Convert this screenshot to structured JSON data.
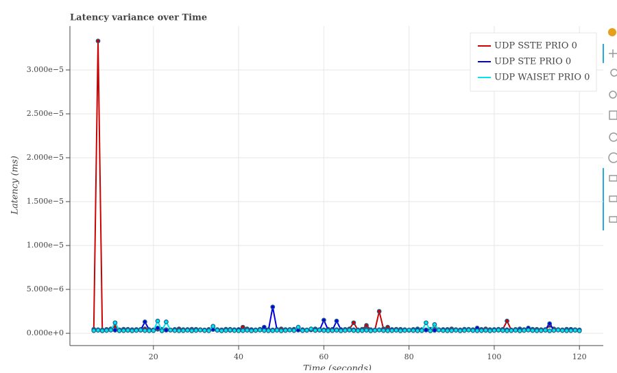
{
  "chart_data": {
    "type": "line",
    "title": "Latency variance over Time",
    "x_label": "Time (seconds)",
    "y_label": "Latency (ms)",
    "x": [
      6,
      7,
      8,
      9,
      10,
      11,
      12,
      13,
      14,
      15,
      16,
      17,
      18,
      19,
      20,
      21,
      22,
      23,
      24,
      25,
      26,
      27,
      28,
      29,
      30,
      31,
      32,
      33,
      34,
      35,
      36,
      37,
      38,
      39,
      40,
      41,
      42,
      43,
      44,
      45,
      46,
      47,
      48,
      49,
      50,
      51,
      52,
      53,
      54,
      55,
      56,
      57,
      58,
      59,
      60,
      61,
      62,
      63,
      64,
      65,
      66,
      67,
      68,
      69,
      70,
      71,
      72,
      73,
      74,
      75,
      76,
      77,
      78,
      79,
      80,
      81,
      82,
      83,
      84,
      85,
      86,
      87,
      88,
      89,
      90,
      91,
      92,
      93,
      94,
      95,
      96,
      97,
      98,
      99,
      100,
      101,
      102,
      103,
      104,
      105,
      106,
      107,
      108,
      109,
      110,
      111,
      112,
      113,
      114,
      115,
      116,
      117,
      118,
      119,
      120
    ],
    "series": [
      {
        "name": "UDP SSTE PRIO 0",
        "color": "#cc0000",
        "values": [
          4.5e-07,
          3.33e-05,
          3.8e-07,
          4.4e-07,
          5e-07,
          8e-07,
          3.9e-07,
          4.6e-07,
          4.5e-07,
          4.1e-07,
          3.8e-07,
          4.4e-07,
          5e-07,
          4.2e-07,
          3.9e-07,
          4.6e-07,
          4.5e-07,
          4.1e-07,
          3.8e-07,
          4.4e-07,
          5e-07,
          4.2e-07,
          3.9e-07,
          4.6e-07,
          4.5e-07,
          4.1e-07,
          3.8e-07,
          4.4e-07,
          5e-07,
          4.2e-07,
          3.9e-07,
          4.6e-07,
          4.5e-07,
          4.1e-07,
          3.8e-07,
          7e-07,
          5e-07,
          4.2e-07,
          3.9e-07,
          4.6e-07,
          4.5e-07,
          4.1e-07,
          3.8e-07,
          4.4e-07,
          5e-07,
          4.2e-07,
          3.9e-07,
          4.6e-07,
          4.5e-07,
          4.1e-07,
          3.8e-07,
          4.4e-07,
          5e-07,
          4.2e-07,
          3.9e-07,
          4.6e-07,
          4.5e-07,
          4.1e-07,
          3.8e-07,
          4.4e-07,
          5e-07,
          1.2e-06,
          3.9e-07,
          4.6e-07,
          9e-07,
          4.1e-07,
          3.8e-07,
          2.5e-06,
          5e-07,
          7e-07,
          3.9e-07,
          4.6e-07,
          4.5e-07,
          4.1e-07,
          3.8e-07,
          4.4e-07,
          5e-07,
          4.2e-07,
          3.9e-07,
          4.6e-07,
          4.5e-07,
          4.1e-07,
          3.8e-07,
          4.4e-07,
          5e-07,
          4.2e-07,
          3.9e-07,
          4.6e-07,
          4.5e-07,
          4.1e-07,
          3.8e-07,
          4.4e-07,
          5e-07,
          4.2e-07,
          3.9e-07,
          4.6e-07,
          4.5e-07,
          1.4e-06,
          3.8e-07,
          4.4e-07,
          5e-07,
          4.2e-07,
          3.9e-07,
          4.6e-07,
          4.5e-07,
          4.1e-07,
          3.8e-07,
          9e-07,
          5e-07,
          4.2e-07,
          3.9e-07,
          4.6e-07,
          4.5e-07,
          4.1e-07,
          3.8e-07
        ]
      },
      {
        "name": "UDP STE PRIO 0",
        "color": "#0000dd",
        "values": [
          3.6e-07,
          4e-07,
          3.3e-07,
          3.8e-07,
          4.3e-07,
          3.5e-07,
          3.6e-07,
          4e-07,
          3.3e-07,
          3.8e-07,
          4.3e-07,
          3.5e-07,
          1.3e-06,
          4e-07,
          3.3e-07,
          6e-07,
          4.3e-07,
          3.5e-07,
          3.6e-07,
          4e-07,
          3.3e-07,
          3.8e-07,
          4.3e-07,
          3.5e-07,
          3.6e-07,
          4e-07,
          3.3e-07,
          3.8e-07,
          4.3e-07,
          3.5e-07,
          3.6e-07,
          4e-07,
          3.3e-07,
          3.8e-07,
          4.3e-07,
          3.5e-07,
          3.6e-07,
          4e-07,
          3.3e-07,
          3.8e-07,
          7e-07,
          3.5e-07,
          3e-06,
          4e-07,
          3.3e-07,
          3.8e-07,
          4.3e-07,
          3.5e-07,
          3.6e-07,
          4e-07,
          3.3e-07,
          3.8e-07,
          4.3e-07,
          3.5e-07,
          1.5e-06,
          4e-07,
          3.3e-07,
          1.4e-06,
          4.3e-07,
          3.5e-07,
          3.6e-07,
          4e-07,
          3.3e-07,
          3.8e-07,
          4.3e-07,
          3.5e-07,
          3.6e-07,
          4e-07,
          3.3e-07,
          3.8e-07,
          4.3e-07,
          3.5e-07,
          3.6e-07,
          4e-07,
          3.3e-07,
          3.8e-07,
          4.3e-07,
          3.5e-07,
          3.6e-07,
          4e-07,
          3.3e-07,
          3.8e-07,
          4.3e-07,
          3.5e-07,
          3.6e-07,
          4e-07,
          3.3e-07,
          3.8e-07,
          4.3e-07,
          3.5e-07,
          6e-07,
          4e-07,
          3.3e-07,
          3.8e-07,
          4.3e-07,
          3.5e-07,
          3.6e-07,
          4e-07,
          3.3e-07,
          3.8e-07,
          4.3e-07,
          3.5e-07,
          6e-07,
          4e-07,
          3.3e-07,
          3.8e-07,
          4.3e-07,
          1.1e-06,
          3.6e-07,
          4e-07,
          3.3e-07,
          3.8e-07,
          4.3e-07,
          3.5e-07,
          3.6e-07
        ]
      },
      {
        "name": "UDP WAISET PRIO 0",
        "color": "#00e5ee",
        "values": [
          3e-07,
          3.4e-07,
          2.8e-07,
          3.2e-07,
          3.6e-07,
          1.2e-06,
          2.9e-07,
          3e-07,
          3.4e-07,
          2.8e-07,
          3.2e-07,
          3.6e-07,
          3.1e-07,
          2.9e-07,
          3e-07,
          1.4e-06,
          2.8e-07,
          1.3e-06,
          3.6e-07,
          3.1e-07,
          2.9e-07,
          3e-07,
          3.4e-07,
          2.8e-07,
          3.2e-07,
          3.6e-07,
          3.1e-07,
          2.9e-07,
          8e-07,
          3.4e-07,
          2.8e-07,
          3.2e-07,
          3.6e-07,
          3.1e-07,
          2.9e-07,
          3e-07,
          3.4e-07,
          2.8e-07,
          3.2e-07,
          3.6e-07,
          3.1e-07,
          2.9e-07,
          3e-07,
          3.4e-07,
          2.8e-07,
          3.2e-07,
          3.6e-07,
          3.1e-07,
          7e-07,
          3e-07,
          3.4e-07,
          5e-07,
          3.2e-07,
          3.6e-07,
          3.1e-07,
          2.9e-07,
          3e-07,
          3.4e-07,
          2.8e-07,
          3.2e-07,
          3.6e-07,
          3.1e-07,
          2.9e-07,
          3e-07,
          3.4e-07,
          2.8e-07,
          3.2e-07,
          3.6e-07,
          3.1e-07,
          2.9e-07,
          3e-07,
          3.4e-07,
          2.8e-07,
          3.2e-07,
          3.6e-07,
          3.1e-07,
          2.9e-07,
          3e-07,
          1.2e-06,
          2.8e-07,
          1e-06,
          3.6e-07,
          3.1e-07,
          2.9e-07,
          3e-07,
          3.4e-07,
          2.8e-07,
          3.2e-07,
          3.6e-07,
          3.1e-07,
          2.9e-07,
          3e-07,
          3.4e-07,
          2.8e-07,
          3.2e-07,
          3.6e-07,
          3.1e-07,
          2.9e-07,
          3e-07,
          3.4e-07,
          2.8e-07,
          3.2e-07,
          3.6e-07,
          3.1e-07,
          2.9e-07,
          3e-07,
          3.4e-07,
          2.8e-07,
          3.2e-07,
          3.6e-07,
          3.1e-07,
          2.9e-07,
          3e-07,
          3.4e-07,
          2.8e-07
        ]
      }
    ],
    "xlim": [
      0.4,
      125.6
    ],
    "xticks": [
      20,
      40,
      60,
      80,
      100,
      120
    ],
    "ylim": [
      -1.4e-06,
      3.5e-05
    ],
    "yticks": [
      {
        "value": 0,
        "label": "0.000e+0"
      },
      {
        "value": 5e-06,
        "label": "5.000e−6"
      },
      {
        "value": 1e-05,
        "label": "1.000e−5"
      },
      {
        "value": 1.5e-05,
        "label": "1.500e−5"
      },
      {
        "value": 2e-05,
        "label": "2.000e−5"
      },
      {
        "value": 2.5e-05,
        "label": "2.500e−5"
      },
      {
        "value": 3e-05,
        "label": "3.000e−5"
      }
    ],
    "grid": true,
    "legend_position": "top-right"
  }
}
